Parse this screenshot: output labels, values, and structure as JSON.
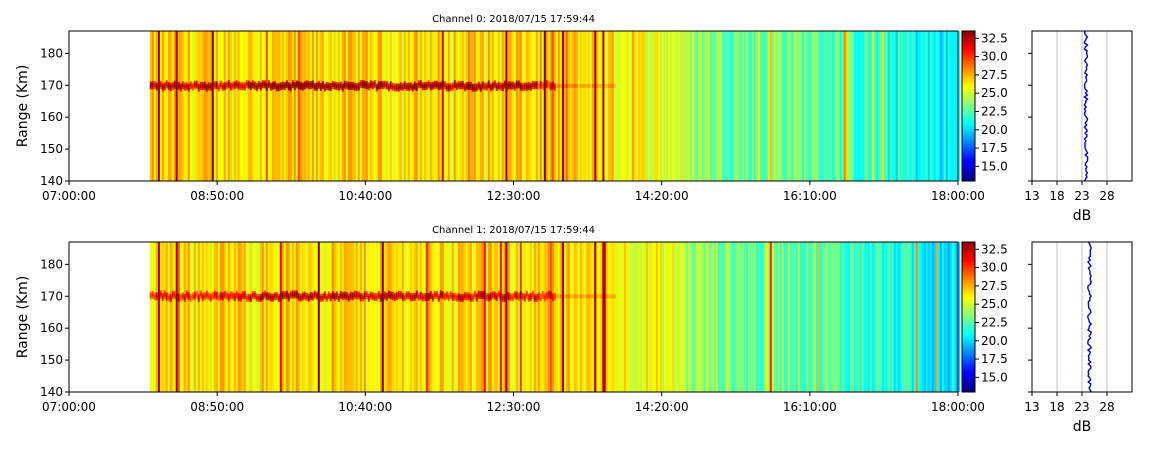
{
  "chart_data": [
    {
      "type": "heatmap",
      "title": "Channel 0: 2018/07/15 17:59:44",
      "ylabel": "Range (Km)",
      "xlabel": "",
      "xlim": [
        "07:00:00",
        "18:00:00"
      ],
      "xticks": [
        "07:00:00",
        "08:50:00",
        "10:40:00",
        "12:30:00",
        "14:20:00",
        "16:10:00",
        "18:00:00"
      ],
      "ylim": [
        140,
        187
      ],
      "yticks": [
        140,
        150,
        160,
        170,
        180
      ],
      "data_start": "08:00:00",
      "colorbar": {
        "ticks": [
          "15.0",
          "17.5",
          "20.0",
          "22.5",
          "25.0",
          "27.5",
          "30.0",
          "32.5"
        ],
        "range": [
          13,
          33.5
        ],
        "colormap": "jet"
      },
      "profile": {
        "xlabel": "dB",
        "xticks": [
          "13",
          "18",
          "23",
          "28"
        ],
        "xlim": [
          13,
          33
        ],
        "grid": true,
        "mean": 23.8
      },
      "echo": {
        "center": 169.8,
        "strength": [
          0.7,
          1.0,
          0.9,
          0.85,
          0.4
        ],
        "end": "13:00:00"
      }
    },
    {
      "type": "heatmap",
      "title": "Channel 1: 2018/07/15 17:59:44",
      "ylabel": "Range (Km)",
      "xlabel": "",
      "xlim": [
        "07:00:00",
        "18:00:00"
      ],
      "xticks": [
        "07:00:00",
        "08:50:00",
        "10:40:00",
        "12:30:00",
        "14:20:00",
        "16:10:00",
        "18:00:00"
      ],
      "ylim": [
        140,
        187
      ],
      "yticks": [
        140,
        150,
        160,
        170,
        180
      ],
      "data_start": "08:00:00",
      "colorbar": {
        "ticks": [
          "15.0",
          "17.5",
          "20.0",
          "22.5",
          "25.0",
          "27.5",
          "30.0",
          "32.5"
        ],
        "range": [
          13,
          33.5
        ],
        "colormap": "jet"
      },
      "profile": {
        "xlabel": "dB",
        "xticks": [
          "13",
          "18",
          "23",
          "28"
        ],
        "xlim": [
          13,
          33
        ],
        "grid": true,
        "mean": 24.5
      },
      "echo": {
        "center": 170.0,
        "strength": [
          0.5,
          0.8,
          0.7,
          0.6,
          0.3
        ],
        "end": "13:00:00"
      }
    }
  ]
}
